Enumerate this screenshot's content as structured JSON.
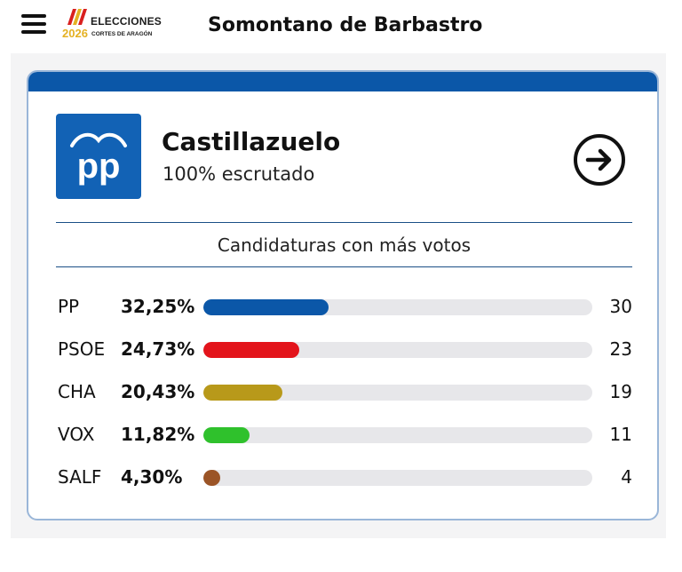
{
  "header": {
    "logo_title": "ELECCIONES",
    "logo_year": "2026",
    "logo_subtitle": "CORTES DE ARAGÓN",
    "page_title": "Somontano de Barbastro"
  },
  "card": {
    "party_logo_text": "pp",
    "municipality": "Castillazuelo",
    "scrutiny": "100% escrutado",
    "section_title": "Candidaturas con más votos",
    "accent_color": "#0b57a8",
    "parties": [
      {
        "name": "PP",
        "percent": "32,25%",
        "share": 32.25,
        "seats": "30",
        "color": "#0b57a8"
      },
      {
        "name": "PSOE",
        "percent": "24,73%",
        "share": 24.73,
        "seats": "23",
        "color": "#e3141b"
      },
      {
        "name": "CHA",
        "percent": "20,43%",
        "share": 20.43,
        "seats": "19",
        "color": "#b8991a"
      },
      {
        "name": "VOX",
        "percent": "11,82%",
        "share": 11.82,
        "seats": "11",
        "color": "#2fc12c"
      },
      {
        "name": "SALF",
        "percent": "4,30%",
        "share": 4.3,
        "seats": "4",
        "color": "#9b5426"
      }
    ]
  },
  "icons": {
    "menu": "hamburger-menu-icon",
    "details": "arrow-right-circle-icon"
  }
}
